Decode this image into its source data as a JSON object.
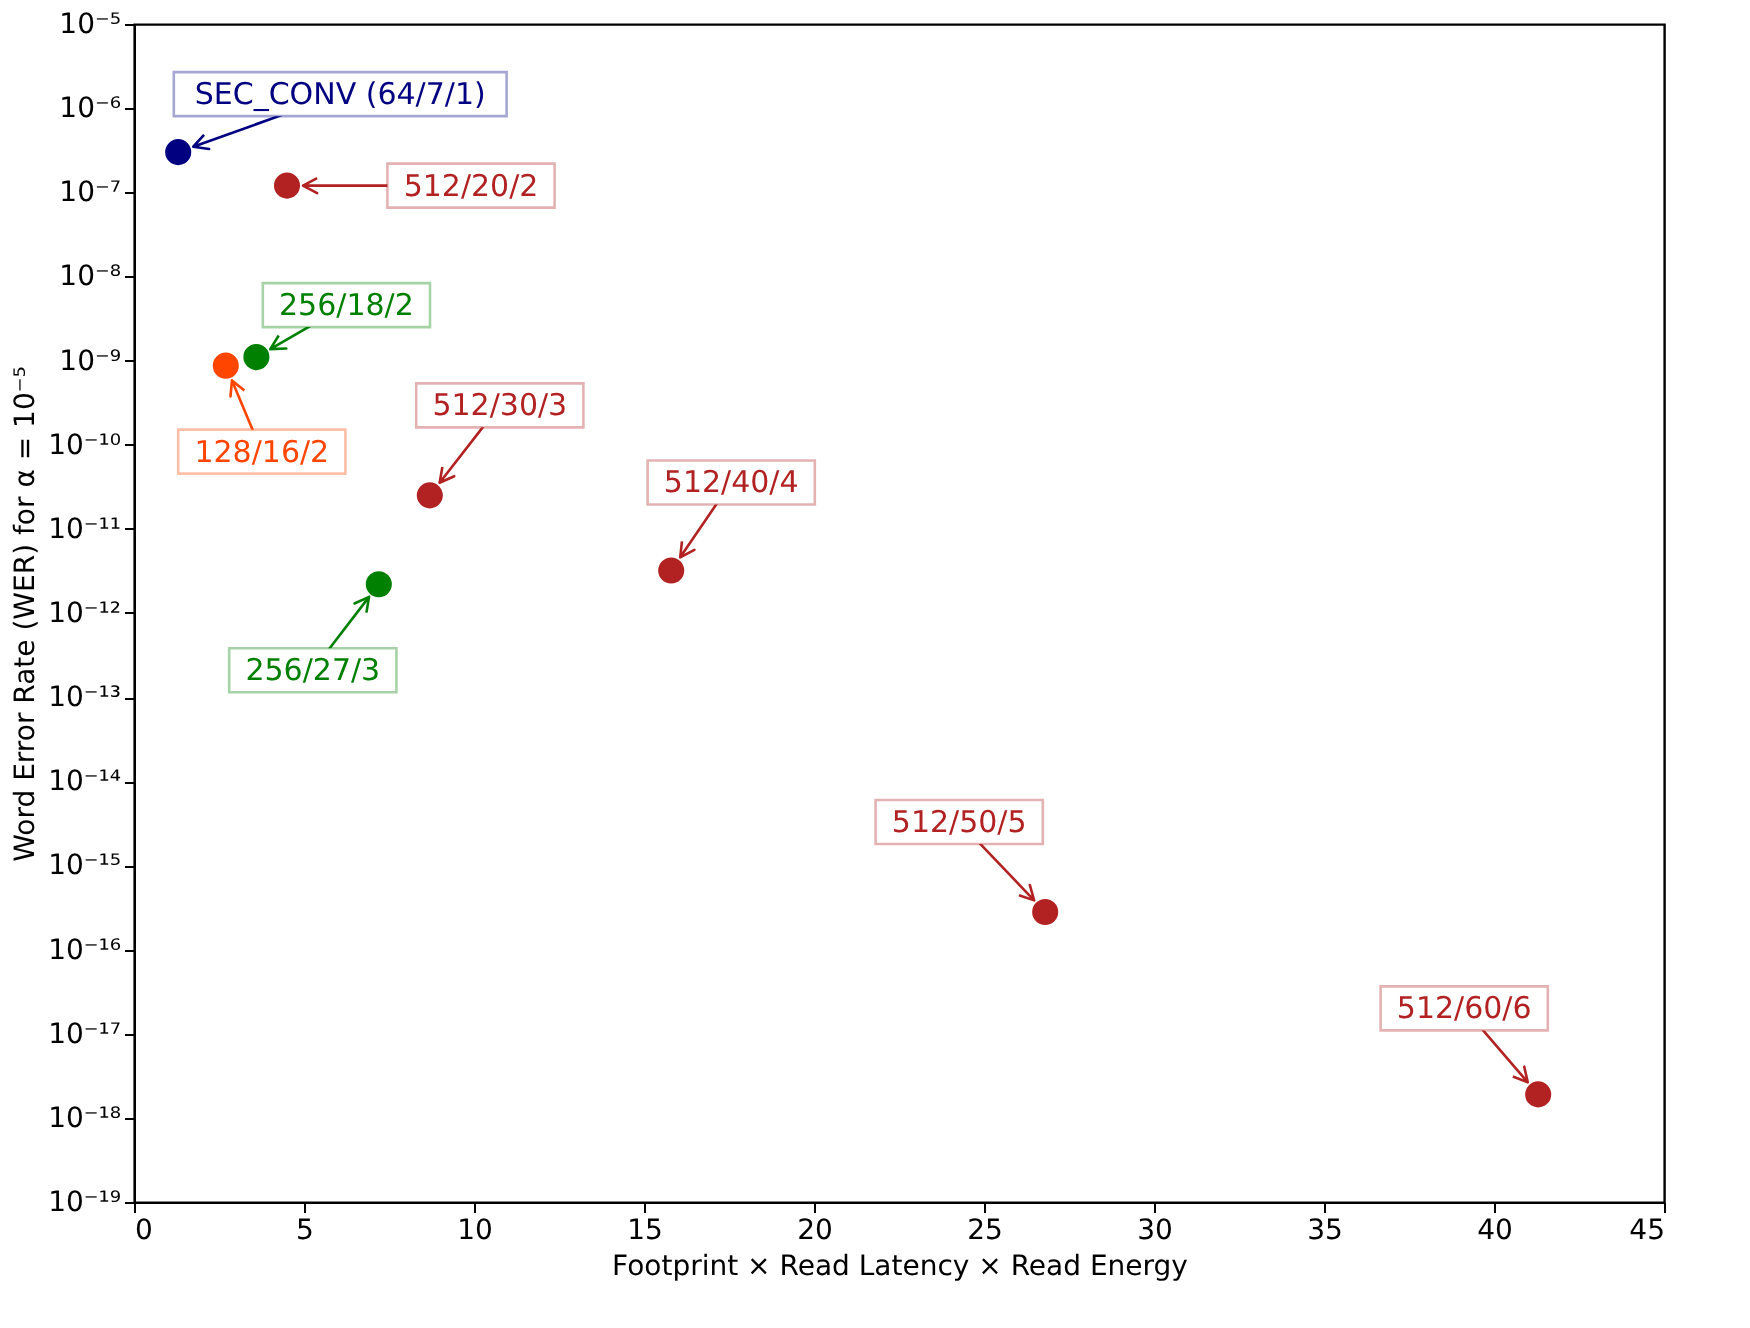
{
  "chart_data": {
    "type": "scatter",
    "xlabel": "Footprint × Read Latency × Read Energy",
    "ylabel": "Word Error Rate (WER) for α = 10⁻⁵",
    "x": [
      1.3,
      4.5,
      3.6,
      2.7,
      8.7,
      7.2,
      15.8,
      26.8,
      41.3
    ],
    "series": [
      {
        "values": [
          3e-07,
          1.2e-07,
          1.1e-09,
          8.7e-10,
          2.5e-11,
          2.2e-12,
          3.2e-12,
          2.8e-16,
          1.9e-18
        ],
        "colors": [
          "#000080",
          "#b22222",
          "#008000",
          "#ff4500",
          "#b22222",
          "#008000",
          "#b22222",
          "#b22222",
          "#b22222"
        ]
      }
    ],
    "annotations": [
      {
        "text": "SEC_CONV (64/7/1)",
        "x": 1.3,
        "y": 3e-07
      },
      "512/20/2",
      {
        "text": "256/18/2",
        "x": 3.6,
        "y": 1.1e-09
      },
      {
        "text": "128/16/2",
        "x": 2.7,
        "y": 8.7e-10
      },
      {
        "text": "512/30/3",
        "x": 8.7,
        "y": 2.5e-11
      },
      {
        "text": "256/27/3",
        "x": 7.2,
        "y": 2.2e-12
      },
      {
        "text": "512/40/4",
        "x": 15.8,
        "y": 3.2e-12
      },
      {
        "text": "512/50/5",
        "x": 26.8,
        "y": 2.8e-16
      },
      {
        "text": "512/60/6",
        "x": 41.3,
        "y": 1.9e-18
      }
    ],
    "log": "y",
    "xlim": [
      0,
      45
    ],
    "xticks": [
      0,
      5,
      10,
      15,
      20,
      25,
      30,
      35,
      40,
      45
    ],
    "ylim": [
      1e-19,
      1e-05
    ],
    "yticks": [
      {
        "value": 1e-19,
        "label": "10⁻¹⁹"
      },
      {
        "value": 1e-18,
        "label": "10⁻¹⁸"
      },
      {
        "value": 1e-17,
        "label": "10⁻¹⁷"
      },
      {
        "value": 1e-16,
        "label": "10⁻¹⁶"
      },
      {
        "value": 1e-15,
        "label": "10⁻¹⁵"
      },
      {
        "value": 1e-14,
        "label": "10⁻¹⁴"
      },
      {
        "value": 1e-13,
        "label": "10⁻¹³"
      },
      {
        "value": 1e-12,
        "label": "10⁻¹²"
      },
      {
        "value": 1e-11,
        "label": "10⁻¹¹"
      },
      {
        "value": 1e-10,
        "label": "10⁻¹⁰"
      },
      {
        "value": 1e-09,
        "label": "10⁻⁹"
      },
      {
        "value": 1e-08,
        "label": "10⁻⁸"
      },
      {
        "value": 1e-07,
        "label": "10⁻⁷"
      },
      {
        "value": 1e-06,
        "label": "10⁻⁶"
      },
      {
        "value": 1e-05,
        "label": "10⁻⁵"
      }
    ],
    "grid": false,
    "marker": "circle"
  }
}
